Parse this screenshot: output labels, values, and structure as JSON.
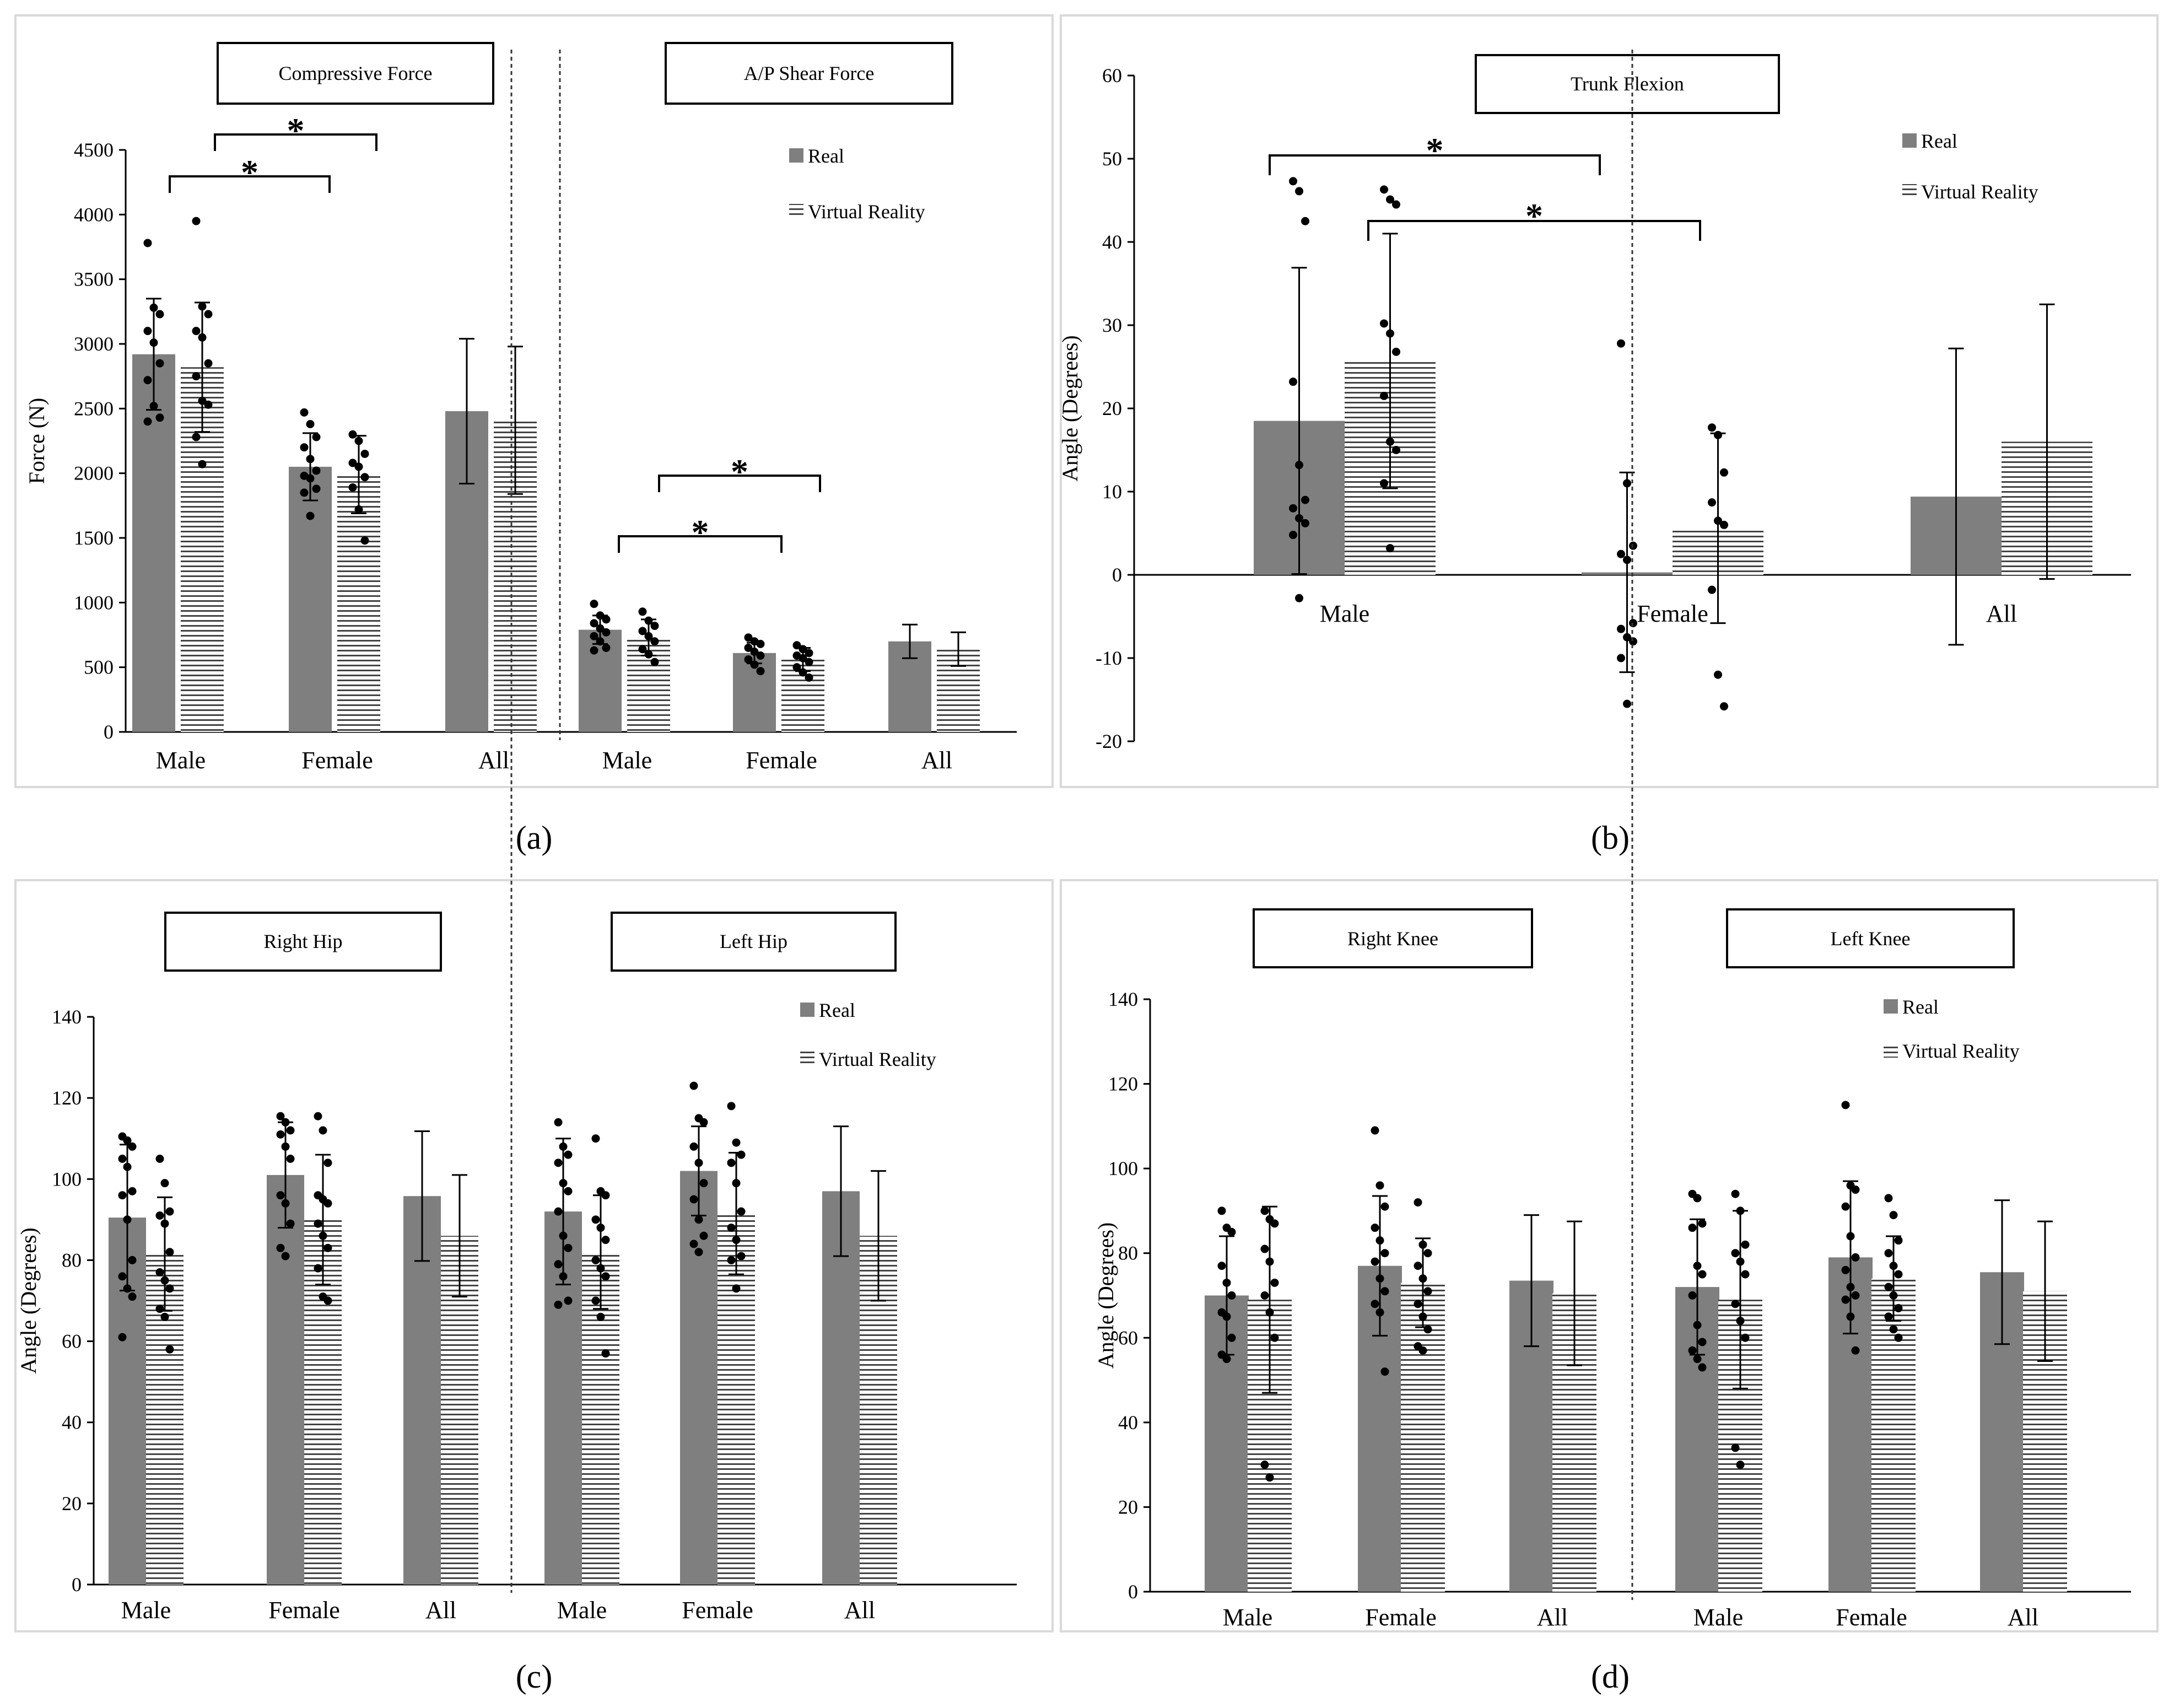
{
  "figure": {
    "panel_labels": [
      "(a)",
      "(b)",
      "(c)",
      "(d)"
    ],
    "legend": {
      "real": "Real",
      "vr": "Virtual Reality"
    }
  },
  "chart_data": [
    {
      "type": "bar",
      "id": "a",
      "panel_label": "(a)",
      "ylabel": "Force (N)",
      "ylim": [
        0,
        4500
      ],
      "yticks": [
        0,
        500,
        1000,
        1500,
        2000,
        2500,
        3000,
        3500,
        4000,
        4500
      ],
      "groups": [
        {
          "title": "Compressive Force",
          "categories": [
            "Male",
            "Female",
            "All"
          ],
          "series": [
            {
              "name": "Real",
              "values": [
                2920,
                2050,
                2480
              ],
              "sd": [
                430,
                260,
                560
              ]
            },
            {
              "name": "Virtual Reality",
              "values": [
                2820,
                1990,
                2410
              ],
              "sd": [
                500,
                300,
                570
              ]
            }
          ],
          "points": {
            "Real": [
              [
                3780,
                3280,
                3230,
                3100,
                3010,
                2850,
                2720,
                2520,
                2430,
                2400
              ],
              [
                2470,
                2380,
                2280,
                2200,
                2110,
                2020,
                1980,
                1960,
                1880,
                1850,
                1670
              ],
              []
            ],
            "Virtual Reality": [
              [
                3950,
                3290,
                3230,
                3100,
                3050,
                2850,
                2750,
                2560,
                2530,
                2280,
                2070
              ],
              [
                2300,
                2250,
                2150,
                2080,
                2050,
                1970,
                1890,
                1720,
                1480
              ],
              []
            ]
          },
          "significance": [
            {
              "from": "Male.Real",
              "to": "Female.Real",
              "label": "*"
            },
            {
              "from": "Male.Virtual Reality",
              "to": "Female.Virtual Reality",
              "label": "*"
            }
          ]
        },
        {
          "title": "A/P Shear Force",
          "categories": [
            "Male",
            "Female",
            "All"
          ],
          "series": [
            {
              "name": "Real",
              "values": [
                790,
                610,
                700
              ],
              "sd": [
                110,
                80,
                130
              ]
            },
            {
              "name": "Virtual Reality",
              "values": [
                730,
                560,
                640
              ],
              "sd": [
                140,
                90,
                130
              ]
            }
          ],
          "points": {
            "Real": [
              [
                990,
                900,
                870,
                840,
                800,
                770,
                740,
                700,
                650,
                630
              ],
              [
                730,
                700,
                680,
                650,
                620,
                590,
                560,
                520,
                470
              ],
              []
            ],
            "Virtual Reality": [
              [
                930,
                860,
                820,
                780,
                740,
                700,
                640,
                600,
                540
              ],
              [
                670,
                640,
                610,
                590,
                570,
                540,
                500,
                460,
                420
              ],
              []
            ]
          },
          "significance": [
            {
              "from": "Male.Real",
              "to": "Female.Real",
              "label": "*"
            },
            {
              "from": "Male.Virtual Reality",
              "to": "Female.Virtual Reality",
              "label": "*"
            }
          ]
        }
      ]
    },
    {
      "type": "bar",
      "id": "b",
      "panel_label": "(b)",
      "ylabel": "Angle (Degrees)",
      "ylim": [
        -20,
        60
      ],
      "yticks": [
        -20,
        -10,
        0,
        10,
        20,
        30,
        40,
        50,
        60
      ],
      "groups": [
        {
          "title": "Trunk Flexion",
          "categories": [
            "Male",
            "Female",
            "All"
          ],
          "series": [
            {
              "name": "Real",
              "values": [
                18.5,
                0.3,
                9.4
              ],
              "sd": [
                18.4,
                12.0,
                17.8
              ]
            },
            {
              "name": "Virtual Reality",
              "values": [
                25.7,
                5.6,
                16.0
              ],
              "sd": [
                15.3,
                11.4,
                16.5
              ]
            }
          ],
          "points": {
            "Real": [
              [
                47.3,
                46.1,
                42.5,
                23.2,
                13.2,
                9.0,
                8.0,
                6.8,
                6.2,
                4.8,
                -2.8
              ],
              [
                27.8,
                11.0,
                3.5,
                2.5,
                1.8,
                -5.8,
                -6.5,
                -7.5,
                -8.0,
                -10.0,
                -15.5
              ],
              []
            ],
            "Virtual Reality": [
              [
                46.3,
                45.1,
                44.5,
                30.2,
                29.0,
                26.8,
                21.5,
                16.0,
                15.0,
                11.0,
                3.2
              ],
              [
                17.7,
                16.8,
                12.3,
                8.7,
                6.5,
                6.0,
                -1.8,
                -12.0,
                -15.8
              ],
              []
            ]
          },
          "significance": [
            {
              "from": "Male.Real",
              "to": "Female.Real",
              "label": "*"
            },
            {
              "from": "Male.Virtual Reality",
              "to": "Female.Virtual Reality",
              "label": "*"
            }
          ]
        }
      ]
    },
    {
      "type": "bar",
      "id": "c",
      "panel_label": "(c)",
      "ylabel": "Angle (Degrees)",
      "ylim": [
        0,
        140
      ],
      "yticks": [
        0,
        20,
        40,
        60,
        80,
        100,
        120,
        140
      ],
      "groups": [
        {
          "title": "Right Hip",
          "categories": [
            "Male",
            "Female",
            "All"
          ],
          "series": [
            {
              "name": "Real",
              "values": [
                90.5,
                101,
                95.8
              ],
              "sd": [
                18,
                13,
                16
              ]
            },
            {
              "name": "Virtual Reality",
              "values": [
                81.5,
                90,
                86
              ],
              "sd": [
                14,
                16,
                15
              ]
            }
          ],
          "points": {
            "Real": [
              [
                110.5,
                109.5,
                108,
                105,
                103,
                97,
                96,
                90,
                80,
                76,
                73,
                71,
                61
              ],
              [
                115.5,
                114,
                112,
                111,
                108,
                105,
                96,
                94,
                89,
                83,
                81
              ],
              []
            ],
            "Virtual Reality": [
              [
                105,
                99,
                92,
                91,
                89,
                82,
                77,
                75,
                73,
                68,
                66,
                58
              ],
              [
                115.5,
                112,
                104,
                96,
                95,
                94,
                89,
                86,
                83,
                78,
                71,
                70
              ],
              []
            ]
          },
          "significance": []
        },
        {
          "title": "Left Hip",
          "categories": [
            "Male",
            "Female",
            "All"
          ],
          "series": [
            {
              "name": "Real",
              "values": [
                92,
                102,
                97
              ],
              "sd": [
                18,
                11,
                16
              ]
            },
            {
              "name": "Virtual Reality",
              "values": [
                82,
                91.5,
                86
              ],
              "sd": [
                14,
                15,
                16
              ]
            }
          ],
          "points": {
            "Real": [
              [
                114,
                108,
                106,
                104,
                99,
                97,
                92,
                86,
                83,
                79,
                76,
                70,
                69
              ],
              [
                123,
                115,
                114,
                108,
                104,
                99,
                95,
                90,
                86,
                84,
                82
              ],
              []
            ],
            "Virtual Reality": [
              [
                110,
                97,
                96,
                90,
                88,
                85,
                80,
                78,
                76,
                70,
                66,
                57
              ],
              [
                118,
                109,
                106,
                104,
                99,
                92,
                88,
                85,
                81,
                80,
                73
              ],
              []
            ]
          },
          "significance": []
        }
      ]
    },
    {
      "type": "bar",
      "id": "d",
      "panel_label": "(d)",
      "ylabel": "Angle (Degrees)",
      "ylim": [
        0,
        140
      ],
      "yticks": [
        0,
        20,
        40,
        60,
        80,
        100,
        120,
        140
      ],
      "groups": [
        {
          "title": "Right Knee",
          "categories": [
            "Male",
            "Female",
            "All"
          ],
          "series": [
            {
              "name": "Real",
              "values": [
                70,
                77,
                73.5
              ],
              "sd": [
                14,
                16.5,
                15.5
              ]
            },
            {
              "name": "Virtual Reality",
              "values": [
                69,
                73,
                70.5
              ],
              "sd": [
                22,
                10.5,
                17
              ]
            }
          ],
          "points": {
            "Real": [
              [
                90,
                86,
                85,
                77,
                73,
                70,
                66,
                65,
                60,
                56,
                55
              ],
              [
                109,
                96,
                91,
                86,
                83,
                80,
                78,
                74,
                71,
                68,
                66,
                52
              ],
              []
            ],
            "Virtual Reality": [
              [
                90,
                88,
                87,
                81,
                78,
                73,
                70,
                66,
                60,
                30,
                27
              ],
              [
                92,
                82,
                80,
                77,
                74,
                71,
                68,
                65,
                62,
                58,
                57
              ],
              []
            ]
          },
          "significance": []
        },
        {
          "title": "Left Knee",
          "categories": [
            "Male",
            "Female",
            "All"
          ],
          "series": [
            {
              "name": "Real",
              "values": [
                72,
                79,
                75.5
              ],
              "sd": [
                16,
                18,
                17
              ]
            },
            {
              "name": "Virtual Reality",
              "values": [
                69,
                74,
                71
              ],
              "sd": [
                21,
                10,
                16.5
              ]
            }
          ],
          "points": {
            "Real": [
              [
                94,
                93,
                87,
                86,
                77,
                75,
                70,
                63,
                59,
                57,
                55,
                53
              ],
              [
                115,
                96,
                95,
                91,
                84,
                79,
                76,
                72,
                70,
                69,
                65,
                57
              ],
              []
            ],
            "Virtual Reality": [
              [
                94,
                90,
                82,
                80,
                78,
                75,
                68,
                64,
                60,
                34,
                30
              ],
              [
                93,
                89,
                83,
                80,
                77,
                75,
                72,
                70,
                67,
                65,
                62,
                60
              ],
              []
            ]
          },
          "significance": []
        }
      ]
    }
  ]
}
